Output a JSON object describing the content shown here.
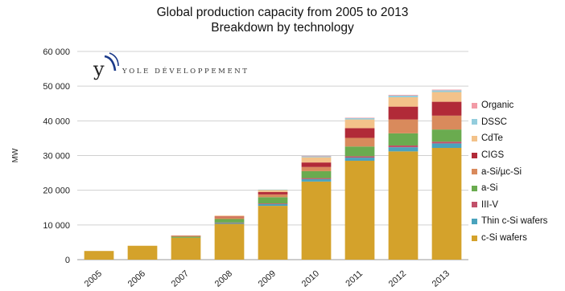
{
  "chart_data": {
    "type": "bar",
    "stacked": true,
    "title": "Global production capacity from 2005 to 2013",
    "subtitle": "Breakdown by technology",
    "ylabel": "MW",
    "xlabel": "",
    "ylim": [
      0,
      60000
    ],
    "yticks": [
      0,
      10000,
      20000,
      30000,
      40000,
      50000,
      60000
    ],
    "ytick_labels": [
      "0",
      "10 000",
      "20 000",
      "30 000",
      "40 000",
      "50 000",
      "60 000"
    ],
    "grid": true,
    "legend_position": "right",
    "categories": [
      "2005",
      "2006",
      "2007",
      "2008",
      "2009",
      "2010",
      "2011",
      "2012",
      "2013"
    ],
    "series": [
      {
        "name": "c-Si wafers",
        "color": "#d4a22b",
        "values": [
          2500,
          4000,
          6300,
          10300,
          15500,
          22500,
          28500,
          31200,
          32200
        ]
      },
      {
        "name": "Thin c-Si wafers",
        "color": "#4aa3bd",
        "values": [
          0,
          0,
          0,
          300,
          500,
          700,
          900,
          1200,
          1300
        ]
      },
      {
        "name": "III-V",
        "color": "#c1506a",
        "values": [
          0,
          0,
          0,
          100,
          200,
          300,
          400,
          500,
          500
        ]
      },
      {
        "name": "a-Si",
        "color": "#6aab4f",
        "values": [
          0,
          0,
          300,
          1000,
          1800,
          2000,
          2800,
          3500,
          3500
        ]
      },
      {
        "name": "a-Si/µc-Si",
        "color": "#d98a5c",
        "values": [
          0,
          0,
          200,
          500,
          800,
          1200,
          2500,
          4000,
          4000
        ]
      },
      {
        "name": "CIGS",
        "color": "#b12a38",
        "values": [
          0,
          0,
          100,
          200,
          700,
          1300,
          2800,
          3700,
          4000
        ]
      },
      {
        "name": "CdTe",
        "color": "#f3c28a",
        "values": [
          0,
          0,
          100,
          300,
          600,
          1500,
          2500,
          2700,
          2800
        ]
      },
      {
        "name": "DSSC",
        "color": "#93cddd",
        "values": [
          0,
          0,
          0,
          0,
          100,
          300,
          400,
          500,
          500
        ]
      },
      {
        "name": "Organic",
        "color": "#f29ba6",
        "values": [
          0,
          0,
          0,
          0,
          0,
          100,
          100,
          200,
          200
        ]
      }
    ]
  },
  "logo": {
    "text": "YOLE DÉVELOPPEMENT"
  }
}
